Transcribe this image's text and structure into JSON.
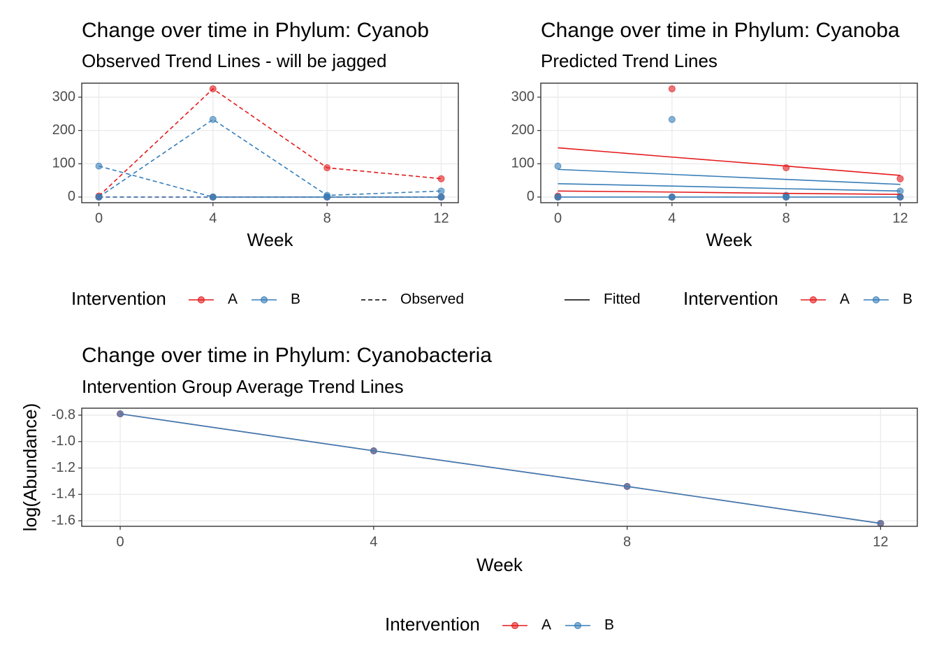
{
  "chart_data": [
    {
      "type": "line",
      "title": "Change over time in Phylum: Cyanob",
      "subtitle": "Observed Trend Lines - will be jagged",
      "x_label": "Week",
      "x": [
        0,
        4,
        8,
        12
      ],
      "xlim": [
        -0.6,
        12.6
      ],
      "xticks": [
        0,
        4,
        8,
        12
      ],
      "ylim": [
        -17,
        342
      ],
      "yticks": [
        0,
        100,
        200,
        300
      ],
      "grid": true,
      "series": [
        {
          "color": "#e41a1c",
          "linestyle": "dashed",
          "markers": true,
          "values": [
            3,
            325,
            88,
            55
          ]
        },
        {
          "color": "#e41a1c",
          "linestyle": "dashed",
          "markers": true,
          "values": [
            0,
            0,
            0,
            0
          ]
        },
        {
          "color": "#377eb8",
          "linestyle": "dashed",
          "markers": true,
          "values": [
            0,
            233,
            5,
            18
          ]
        },
        {
          "color": "#377eb8",
          "linestyle": "dashed",
          "markers": true,
          "values": [
            93,
            0,
            0,
            0
          ]
        },
        {
          "color": "#377eb8",
          "linestyle": "dashed",
          "markers": true,
          "values": [
            0,
            0,
            0,
            0
          ]
        }
      ],
      "legend": {
        "title": "Intervention",
        "entries": [
          {
            "name": "A",
            "color": "#e41a1c"
          },
          {
            "name": "B",
            "color": "#377eb8"
          }
        ],
        "line_entry": {
          "name": "Observed",
          "linestyle": "dashed"
        }
      }
    },
    {
      "type": "line",
      "title": "Change over time in Phylum: Cyanoba",
      "subtitle": "Predicted Trend Lines",
      "x_label": "Week",
      "x": [
        0,
        4,
        8,
        12
      ],
      "xlim": [
        -0.6,
        12.6
      ],
      "xticks": [
        0,
        4,
        8,
        12
      ],
      "ylim": [
        -17,
        342
      ],
      "yticks": [
        0,
        100,
        200,
        300
      ],
      "grid": true,
      "series": [
        {
          "color": "#e41a1c",
          "linestyle": "none",
          "markers": true,
          "values": [
            3,
            325,
            88,
            55
          ]
        },
        {
          "color": "#e41a1c",
          "linestyle": "none",
          "markers": true,
          "values": [
            0,
            0,
            0,
            0
          ]
        },
        {
          "color": "#377eb8",
          "linestyle": "none",
          "markers": true,
          "values": [
            0,
            233,
            5,
            18
          ]
        },
        {
          "color": "#377eb8",
          "linestyle": "none",
          "markers": true,
          "values": [
            93,
            0,
            0,
            0
          ]
        },
        {
          "color": "#377eb8",
          "linestyle": "none",
          "markers": true,
          "values": [
            0,
            0,
            0,
            0
          ]
        },
        {
          "color": "#e41a1c",
          "linestyle": "solid",
          "markers": false,
          "values": [
            148,
            120,
            93,
            65
          ]
        },
        {
          "color": "#e41a1c",
          "linestyle": "solid",
          "markers": false,
          "values": [
            18,
            15,
            11,
            8
          ]
        },
        {
          "color": "#377eb8",
          "linestyle": "solid",
          "markers": false,
          "values": [
            83,
            68,
            53,
            38
          ]
        },
        {
          "color": "#377eb8",
          "linestyle": "solid",
          "markers": false,
          "values": [
            40,
            33,
            25,
            18
          ]
        },
        {
          "color": "#377eb8",
          "linestyle": "solid",
          "markers": false,
          "values": [
            0,
            0,
            0,
            0
          ]
        }
      ],
      "legend": {
        "title": "Intervention",
        "entries": [
          {
            "name": "A",
            "color": "#e41a1c"
          },
          {
            "name": "B",
            "color": "#377eb8"
          }
        ],
        "line_entry": {
          "name": "Fitted",
          "linestyle": "solid"
        }
      }
    },
    {
      "type": "line",
      "title": "Change over time in Phylum: Cyanobacteria",
      "subtitle": "Intervention Group Average Trend Lines",
      "x_label": "Week",
      "y_label": "log(Abundance)",
      "x": [
        0,
        4,
        8,
        12
      ],
      "xlim": [
        -0.607,
        12.58
      ],
      "xticks": [
        0,
        4,
        8,
        12
      ],
      "ylim": [
        -1.642,
        -0.747
      ],
      "yticks": [
        -0.8,
        {
          "value": -1,
          "label": "-1.0"
        },
        -1.2,
        -1.4,
        -1.6
      ],
      "grid": true,
      "series": [
        {
          "name": "A",
          "color": "#e41a1c",
          "linestyle": "solid",
          "markers": true,
          "values": [
            -0.79,
            -1.07,
            -1.34,
            -1.62
          ]
        },
        {
          "name": "B",
          "color": "#377eb8",
          "linestyle": "solid",
          "markers": true,
          "values": [
            -0.79,
            -1.07,
            -1.34,
            -1.62
          ]
        }
      ],
      "legend": {
        "title": "Intervention",
        "entries": [
          {
            "name": "A",
            "color": "#e41a1c"
          },
          {
            "name": "B",
            "color": "#377eb8"
          }
        ]
      }
    }
  ]
}
